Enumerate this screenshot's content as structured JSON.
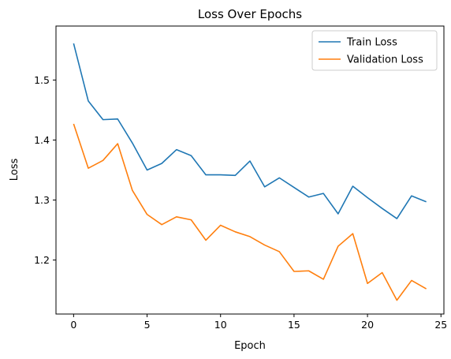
{
  "chart_data": {
    "type": "line",
    "title": "Loss Over Epochs",
    "xlabel": "Epoch",
    "ylabel": "Loss",
    "xlim": [
      -1.2,
      25.2
    ],
    "ylim": [
      1.11,
      1.59
    ],
    "xticks": [
      0,
      5,
      10,
      15,
      20,
      25
    ],
    "yticks": [
      1.2,
      1.3,
      1.4,
      1.5
    ],
    "grid": false,
    "legend_position": "top-right",
    "x": [
      0,
      1,
      2,
      3,
      4,
      5,
      6,
      7,
      8,
      9,
      10,
      11,
      12,
      13,
      14,
      15,
      16,
      17,
      18,
      19,
      20,
      21,
      22,
      23,
      24
    ],
    "series": [
      {
        "name": "Train Loss",
        "color": "#1f77b4",
        "values": [
          1.561,
          1.465,
          1.434,
          1.435,
          1.395,
          1.35,
          1.361,
          1.384,
          1.374,
          1.342,
          1.342,
          1.341,
          1.365,
          1.322,
          1.337,
          1.321,
          1.305,
          1.311,
          1.277,
          1.323,
          1.304,
          1.286,
          1.269,
          1.307,
          1.297
        ]
      },
      {
        "name": "Validation Loss",
        "color": "#ff7f0e",
        "values": [
          1.427,
          1.353,
          1.366,
          1.394,
          1.316,
          1.276,
          1.259,
          1.272,
          1.267,
          1.233,
          1.258,
          1.247,
          1.239,
          1.225,
          1.214,
          1.181,
          1.182,
          1.168,
          1.223,
          1.244,
          1.161,
          1.179,
          1.133,
          1.166,
          1.152
        ]
      }
    ]
  }
}
